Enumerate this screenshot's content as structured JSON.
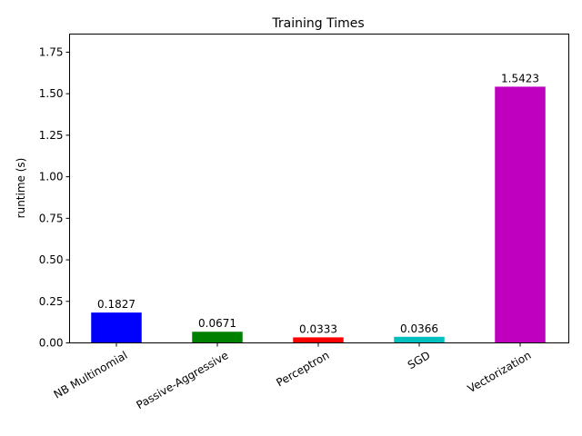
{
  "chart_data": {
    "type": "bar",
    "title": "Training Times",
    "xlabel": "",
    "ylabel": "runtime (s)",
    "categories": [
      "NB Multinomial",
      "Passive-Aggressive",
      "Perceptron",
      "SGD",
      "Vectorization"
    ],
    "values": [
      0.1827,
      0.0671,
      0.0333,
      0.0366,
      1.5423
    ],
    "value_labels": [
      "0.1827",
      "0.0671",
      "0.0333",
      "0.0366",
      "1.5423"
    ],
    "colors": [
      "#0000ff",
      "#008000",
      "#ff0000",
      "#00bfbf",
      "#bf00bf"
    ],
    "ylim": [
      0,
      1.859
    ],
    "yticks": [
      0.0,
      0.25,
      0.5,
      0.75,
      1.0,
      1.25,
      1.5,
      1.75
    ],
    "ytick_labels": [
      "0.00",
      "0.25",
      "0.50",
      "0.75",
      "1.00",
      "1.25",
      "1.50",
      "1.75"
    ],
    "xtick_rotation": 30,
    "grid": false,
    "legend": null
  }
}
